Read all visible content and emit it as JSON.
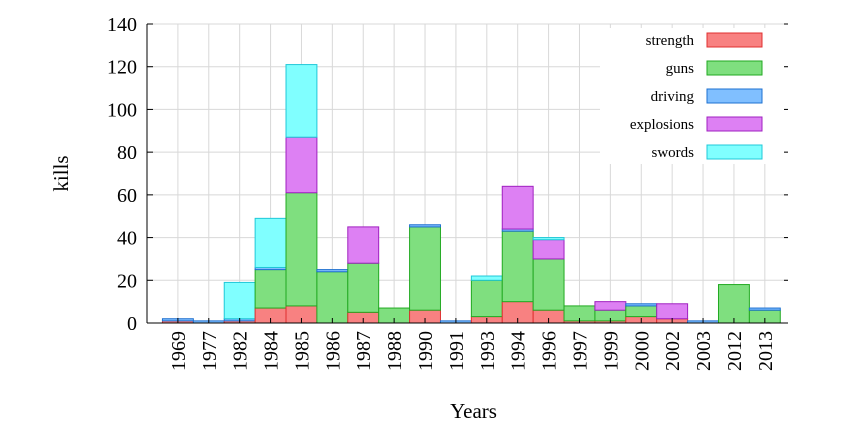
{
  "chart_data": {
    "type": "bar",
    "stacked": true,
    "xlabel": "Years",
    "ylabel": "kills",
    "ylim": [
      0,
      140
    ],
    "yticks": [
      0,
      20,
      40,
      60,
      80,
      100,
      120,
      140
    ],
    "grid": true,
    "legend_position": "top-right",
    "categories": [
      "1969",
      "1977",
      "1982",
      "1984",
      "1985",
      "1986",
      "1987",
      "1988",
      "1990",
      "1991",
      "1993",
      "1994",
      "1996",
      "1997",
      "1999",
      "2000",
      "2002",
      "2003",
      "2012",
      "2013"
    ],
    "series": [
      {
        "name": "strength",
        "color": "#f88181",
        "stroke": "#e03030",
        "values": [
          1,
          0,
          1,
          7,
          8,
          0,
          5,
          0,
          6,
          0,
          3,
          10,
          6,
          1,
          1,
          3,
          2,
          0,
          0,
          0
        ]
      },
      {
        "name": "guns",
        "color": "#7fdf7f",
        "stroke": "#22aa22",
        "values": [
          0,
          0,
          0,
          18,
          53,
          24,
          23,
          7,
          39,
          0,
          17,
          33,
          24,
          7,
          5,
          5,
          0,
          0,
          18,
          6
        ]
      },
      {
        "name": "driving",
        "color": "#80bfff",
        "stroke": "#1e70d0",
        "values": [
          1,
          1,
          1,
          1,
          0,
          1,
          0,
          0,
          1,
          1,
          0,
          1,
          0,
          0,
          0,
          1,
          0,
          1,
          0,
          1
        ]
      },
      {
        "name": "explosions",
        "color": "#dd80f3",
        "stroke": "#a020c0",
        "values": [
          0,
          0,
          0,
          0,
          26,
          0,
          17,
          0,
          0,
          0,
          0,
          20,
          9,
          0,
          4,
          0,
          7,
          0,
          0,
          0
        ]
      },
      {
        "name": "swords",
        "color": "#80ffff",
        "stroke": "#20c8d8",
        "values": [
          0,
          0,
          17,
          23,
          34,
          0,
          0,
          0,
          0,
          0,
          2,
          0,
          1,
          0,
          0,
          0,
          0,
          0,
          0,
          0
        ]
      }
    ]
  }
}
